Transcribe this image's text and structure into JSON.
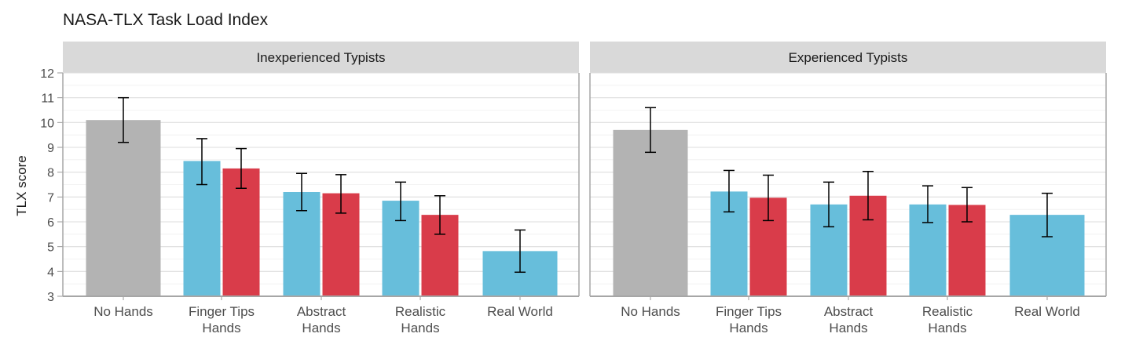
{
  "chart_data": {
    "type": "bar",
    "title": "NASA-TLX Task Load Index",
    "ylabel": "TLX score",
    "ylim": [
      3,
      12
    ],
    "yticks": [
      3,
      4,
      5,
      6,
      7,
      8,
      9,
      10,
      11,
      12
    ],
    "grid": true,
    "colors": {
      "baseline": "#b3b3b3",
      "blue": "#67bedb",
      "red": "#d93c4a",
      "panel_header": "#d9d9d9"
    },
    "panels": [
      {
        "name": "Inexperienced Typists",
        "groups": [
          {
            "label": [
              "No Hands"
            ],
            "bars": [
              {
                "color": "baseline",
                "value": 10.1,
                "err_low": 9.2,
                "err_high": 11.0
              }
            ]
          },
          {
            "label": [
              "Finger Tips",
              "Hands"
            ],
            "bars": [
              {
                "color": "blue",
                "value": 8.45,
                "err_low": 7.5,
                "err_high": 9.35
              },
              {
                "color": "red",
                "value": 8.15,
                "err_low": 7.35,
                "err_high": 8.95
              }
            ]
          },
          {
            "label": [
              "Abstract",
              "Hands"
            ],
            "bars": [
              {
                "color": "blue",
                "value": 7.2,
                "err_low": 6.45,
                "err_high": 7.95
              },
              {
                "color": "red",
                "value": 7.15,
                "err_low": 6.35,
                "err_high": 7.9
              }
            ]
          },
          {
            "label": [
              "Realistic",
              "Hands"
            ],
            "bars": [
              {
                "color": "blue",
                "value": 6.85,
                "err_low": 6.05,
                "err_high": 7.6
              },
              {
                "color": "red",
                "value": 6.28,
                "err_low": 5.5,
                "err_high": 7.05
              }
            ]
          },
          {
            "label": [
              "Real World"
            ],
            "bars": [
              {
                "color": "blue",
                "value": 4.82,
                "err_low": 3.97,
                "err_high": 5.67
              }
            ]
          }
        ]
      },
      {
        "name": "Experienced Typists",
        "groups": [
          {
            "label": [
              "No Hands"
            ],
            "bars": [
              {
                "color": "baseline",
                "value": 9.7,
                "err_low": 8.8,
                "err_high": 10.6
              }
            ]
          },
          {
            "label": [
              "Finger Tips",
              "Hands"
            ],
            "bars": [
              {
                "color": "blue",
                "value": 7.22,
                "err_low": 6.4,
                "err_high": 8.07
              },
              {
                "color": "red",
                "value": 6.97,
                "err_low": 6.05,
                "err_high": 7.88
              }
            ]
          },
          {
            "label": [
              "Abstract",
              "Hands"
            ],
            "bars": [
              {
                "color": "blue",
                "value": 6.7,
                "err_low": 5.8,
                "err_high": 7.6
              },
              {
                "color": "red",
                "value": 7.05,
                "err_low": 6.08,
                "err_high": 8.03
              }
            ]
          },
          {
            "label": [
              "Realistic",
              "Hands"
            ],
            "bars": [
              {
                "color": "blue",
                "value": 6.7,
                "err_low": 5.97,
                "err_high": 7.45
              },
              {
                "color": "red",
                "value": 6.68,
                "err_low": 6.0,
                "err_high": 7.38
              }
            ]
          },
          {
            "label": [
              "Real World"
            ],
            "bars": [
              {
                "color": "blue",
                "value": 6.28,
                "err_low": 5.4,
                "err_high": 7.15
              }
            ]
          }
        ]
      }
    ]
  }
}
